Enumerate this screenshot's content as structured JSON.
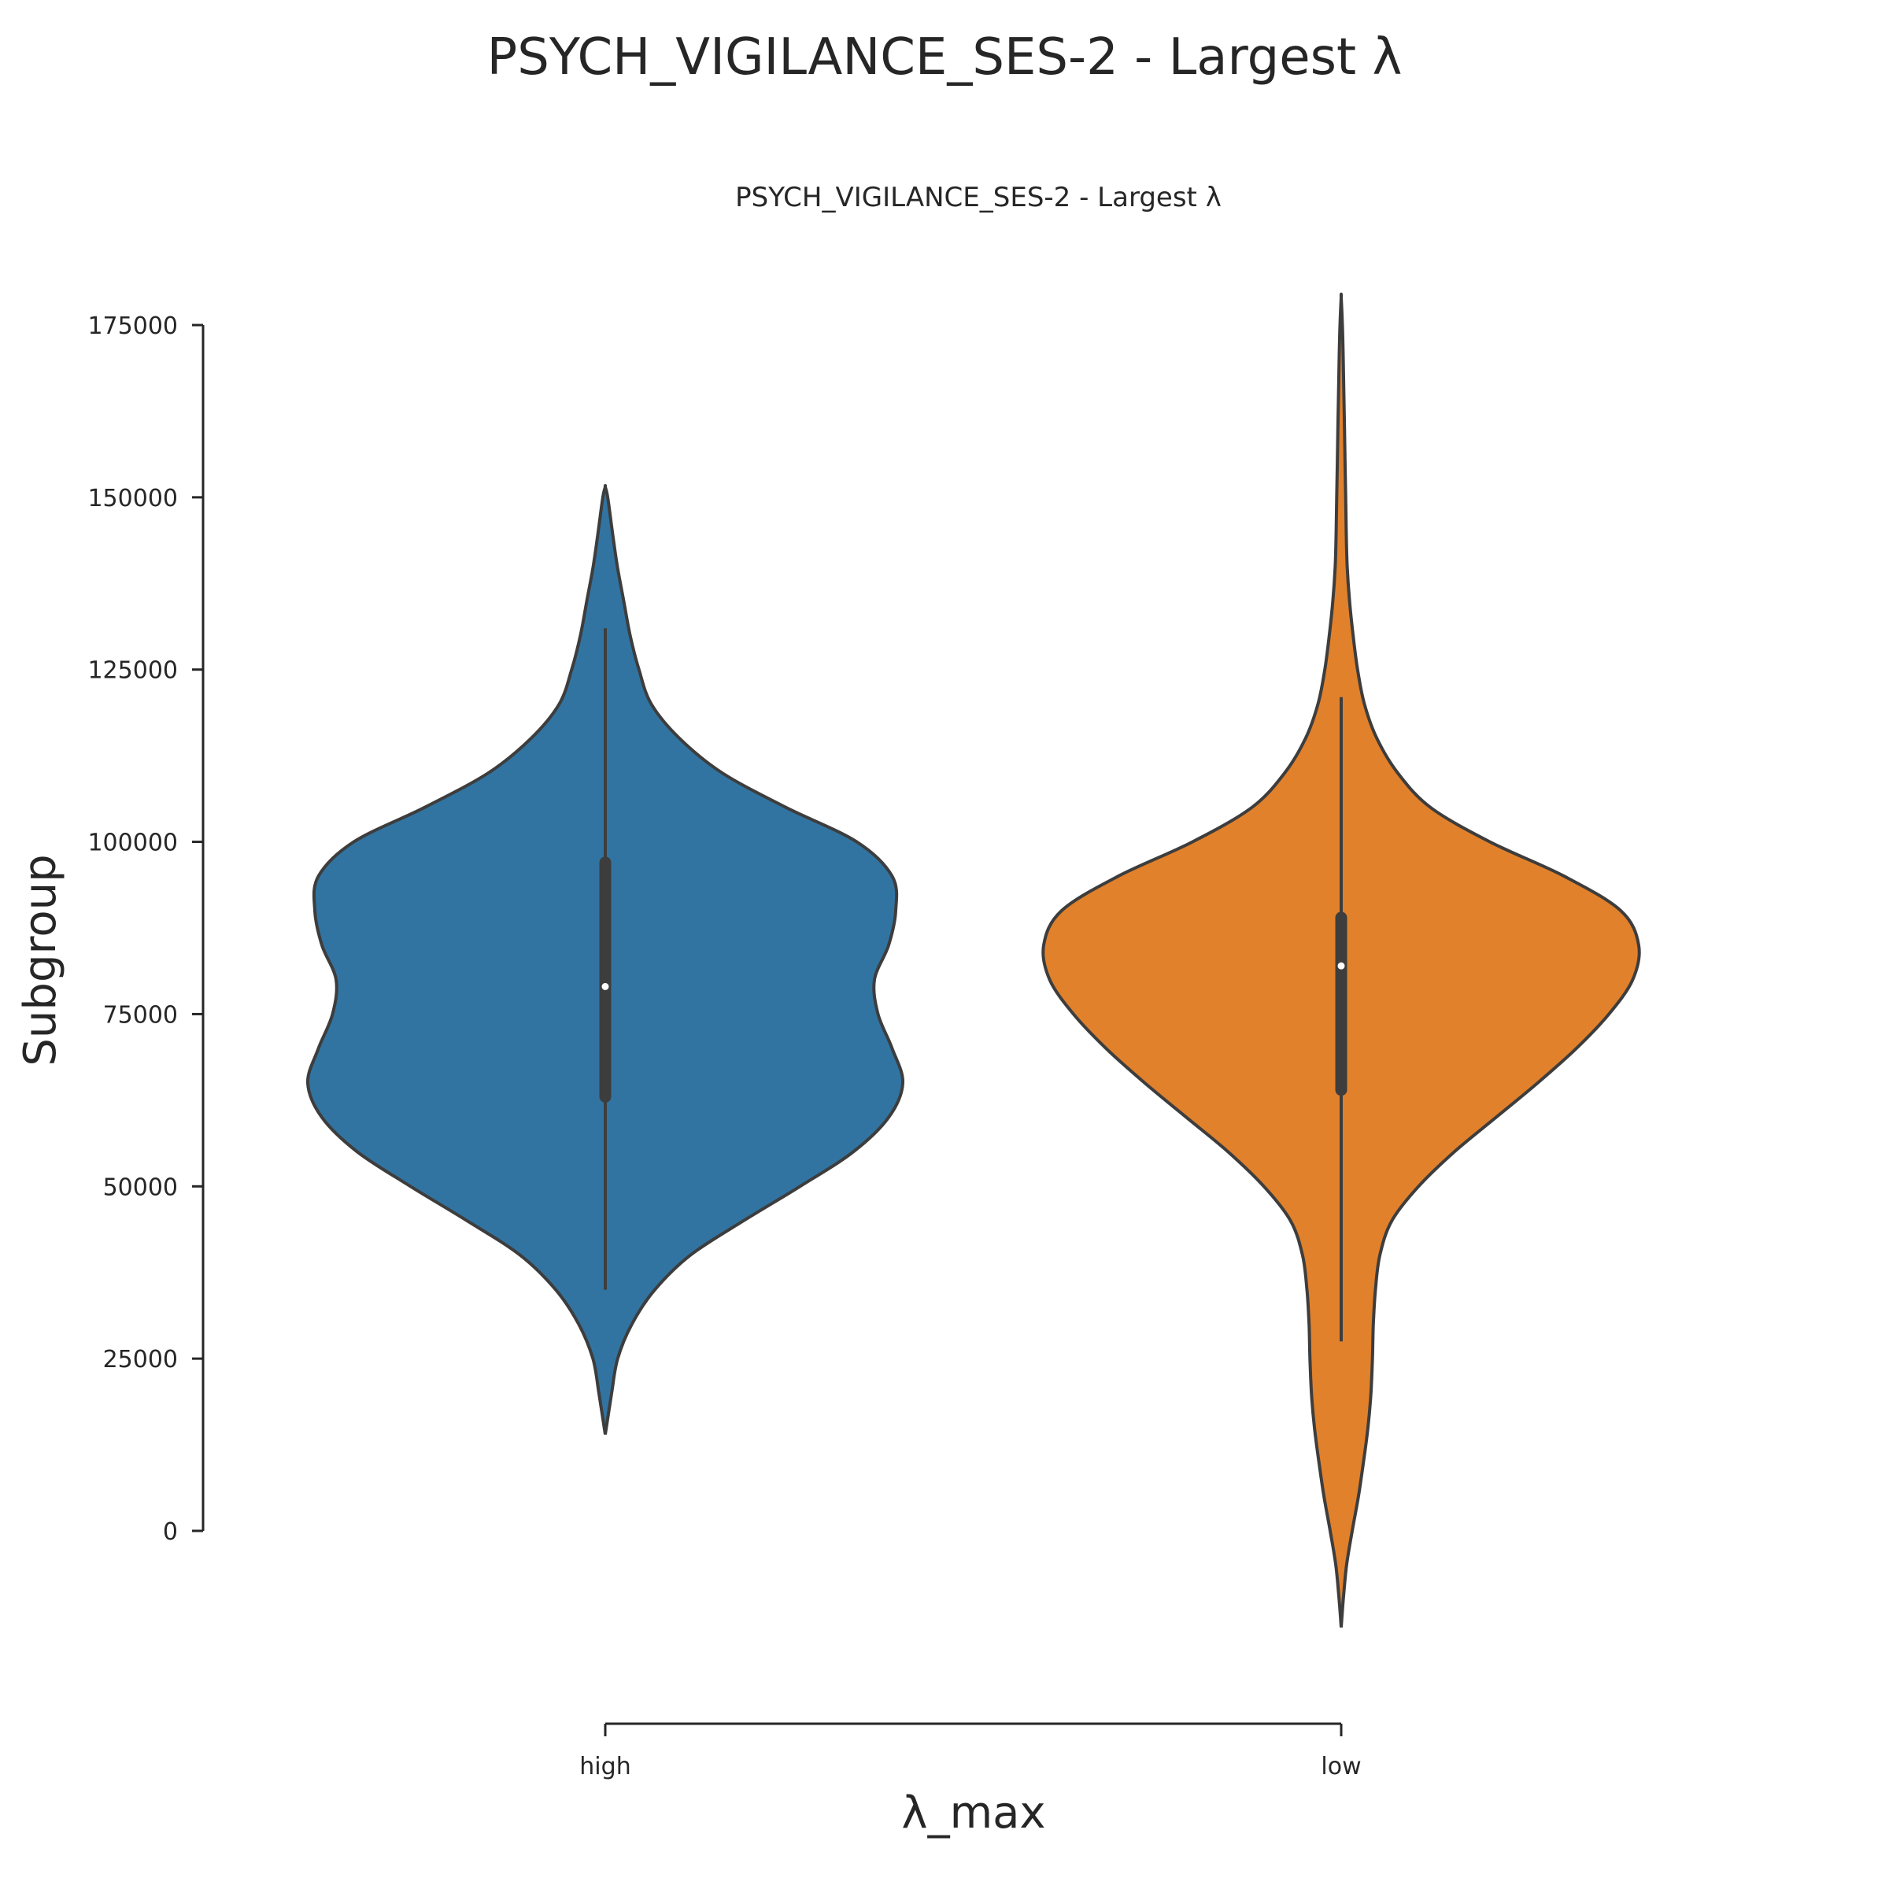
{
  "figure": {
    "suptitle": "PSYCH_VIGILANCE_SES-2 - Largest λ"
  },
  "chart_data": {
    "type": "violin",
    "title": "PSYCH_VIGILANCE_SES-2 - Largest λ",
    "xlabel": "λ_max",
    "ylabel": "Subgroup",
    "categories": [
      "high",
      "low"
    ],
    "ylim": [
      0,
      175000
    ],
    "yticks": [
      0,
      25000,
      50000,
      75000,
      100000,
      125000,
      150000,
      175000
    ],
    "ytick_labels": [
      "0",
      "25000",
      "50000",
      "75000",
      "100000",
      "125000",
      "150000",
      "175000"
    ],
    "grid": false,
    "series": [
      {
        "category": "high",
        "color": "#3274a1",
        "min": 14000,
        "max": 151500,
        "whisker_low": 35000,
        "q1": 63000,
        "median": 79000,
        "q3": 97000,
        "whisker_high": 131000,
        "density_profile": [
          [
            14000,
            0.0
          ],
          [
            20000,
            0.018
          ],
          [
            25000,
            0.035
          ],
          [
            30000,
            0.075
          ],
          [
            35000,
            0.14
          ],
          [
            40000,
            0.24
          ],
          [
            45000,
            0.39
          ],
          [
            50000,
            0.55
          ],
          [
            55000,
            0.7
          ],
          [
            60000,
            0.8
          ],
          [
            65000,
            0.84
          ],
          [
            70000,
            0.81
          ],
          [
            75000,
            0.77
          ],
          [
            80000,
            0.76
          ],
          [
            85000,
            0.8
          ],
          [
            90000,
            0.82
          ],
          [
            95000,
            0.81
          ],
          [
            100000,
            0.71
          ],
          [
            105000,
            0.51
          ],
          [
            110000,
            0.33
          ],
          [
            115000,
            0.21
          ],
          [
            120000,
            0.13
          ],
          [
            125000,
            0.095
          ],
          [
            130000,
            0.07
          ],
          [
            135000,
            0.052
          ],
          [
            140000,
            0.034
          ],
          [
            145000,
            0.02
          ],
          [
            150000,
            0.007
          ],
          [
            151500,
            0.0
          ]
        ]
      },
      {
        "category": "low",
        "color": "#e1812c",
        "min": -14000,
        "max": 179000,
        "whisker_low": 27500,
        "q1": 64000,
        "median": 82000,
        "q3": 89000,
        "whisker_high": 121000,
        "density_profile": [
          [
            -14000,
            0.0
          ],
          [
            -10000,
            0.007
          ],
          [
            -5000,
            0.018
          ],
          [
            0,
            0.037
          ],
          [
            5000,
            0.058
          ],
          [
            10000,
            0.075
          ],
          [
            15000,
            0.09
          ],
          [
            20000,
            0.1
          ],
          [
            25000,
            0.105
          ],
          [
            30000,
            0.108
          ],
          [
            35000,
            0.115
          ],
          [
            40000,
            0.13
          ],
          [
            45000,
            0.17
          ],
          [
            50000,
            0.26
          ],
          [
            55000,
            0.38
          ],
          [
            60000,
            0.52
          ],
          [
            65000,
            0.66
          ],
          [
            70000,
            0.79
          ],
          [
            75000,
            0.9
          ],
          [
            80000,
            0.98
          ],
          [
            85000,
            1.0
          ],
          [
            90000,
            0.94
          ],
          [
            95000,
            0.75
          ],
          [
            100000,
            0.5
          ],
          [
            105000,
            0.3
          ],
          [
            110000,
            0.19
          ],
          [
            115000,
            0.12
          ],
          [
            120000,
            0.078
          ],
          [
            125000,
            0.055
          ],
          [
            130000,
            0.04
          ],
          [
            135000,
            0.028
          ],
          [
            140000,
            0.02
          ],
          [
            145000,
            0.017
          ],
          [
            150000,
            0.015
          ],
          [
            155000,
            0.013
          ],
          [
            160000,
            0.011
          ],
          [
            165000,
            0.009
          ],
          [
            170000,
            0.007
          ],
          [
            175000,
            0.004
          ],
          [
            179000,
            0.0
          ]
        ]
      }
    ]
  }
}
